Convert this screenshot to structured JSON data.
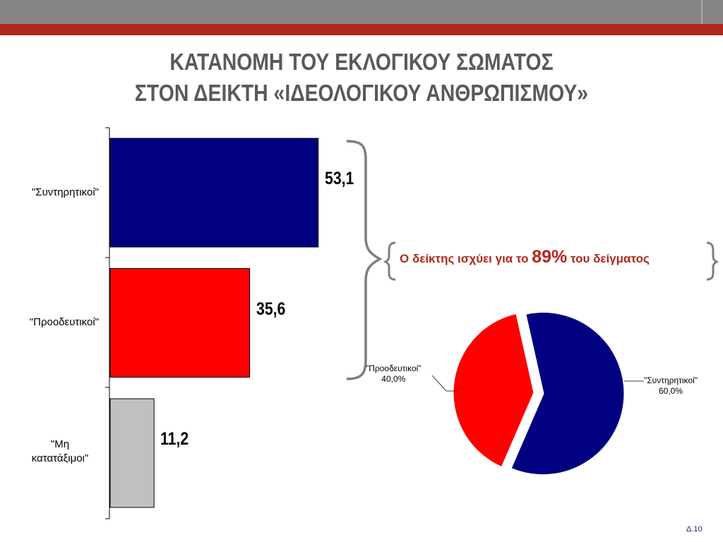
{
  "slide": {
    "title_line1": "ΚΑΤΑΝΟΜΗ ΤΟΥ ΕΚΛΟΓΙΚΟΥ ΣΩΜΑΤΟΣ",
    "title_line2": "ΣΤΟΝ ΔΕΙΚΤΗ «ΙΔΕΟΛΟΓΙΚΟΥ ΑΝΘΡΩΠΙΣΜΟΥ»",
    "note_prefix": "Ο δείκτης ισχύει για το ",
    "note_highlight": "89%",
    "note_suffix": " του δείγματος",
    "slide_number": "Δ.10"
  },
  "colors": {
    "navy": "#000080",
    "red": "#ff0000",
    "grey": "#c0c0c0",
    "accent": "#b0281c",
    "title": "#595959"
  },
  "chart_data": [
    {
      "type": "bar",
      "orientation": "horizontal",
      "categories": [
        "\"Συντηρητικοί\"",
        "\"Προοδευτικοί\"",
        "\"Μη κατατάξιμοι\""
      ],
      "values": [
        53.1,
        35.6,
        11.2
      ],
      "value_labels": [
        "53,1",
        "35,6",
        "11,2"
      ],
      "colors": [
        "#000080",
        "#ff0000",
        "#c0c0c0"
      ],
      "xlim": [
        0,
        60
      ]
    },
    {
      "type": "pie",
      "labels": [
        "\"Συντηρητικοί\"",
        "\"Προοδευτικοί\""
      ],
      "values": [
        60.0,
        40.0
      ],
      "value_labels": [
        "60,0%",
        "40,0%"
      ],
      "colors": [
        "#000080",
        "#ff0000"
      ]
    }
  ]
}
